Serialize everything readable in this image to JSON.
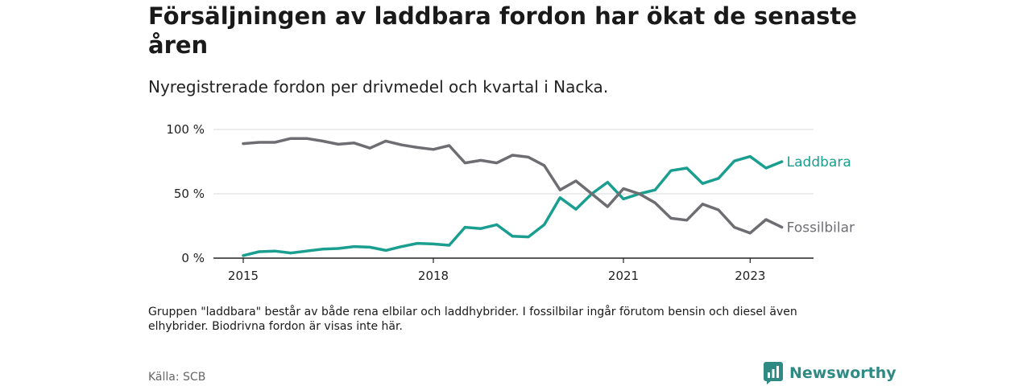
{
  "title": "Försäljningen av laddbara fordon har ökat de senaste åren",
  "subtitle": "Nyregistrerade fordon per drivmedel och kvartal i Nacka.",
  "footnote": "Gruppen \"laddbara\" består av både rena elbilar och laddhybrider. I fossilbilar ingår förutom bensin och diesel även elhybrider. Biodrivna fordon är visas inte här.",
  "source": "Källa: SCB",
  "brand": "Newsworthy",
  "colors": {
    "laddbara": "#1a9e8f",
    "fossil": "#6e6d72",
    "grid": "#d9d9d9",
    "axis": "#222222",
    "brand": "#2f8a84"
  },
  "chart_data": {
    "type": "line",
    "title": "Försäljningen av laddbara fordon har ökat de senaste åren",
    "subtitle": "Nyregistrerade fordon per drivmedel och kvartal i Nacka.",
    "xlabel": "",
    "ylabel": "",
    "x_unit": "year (quarterly)",
    "xlim": [
      2015,
      2024
    ],
    "ylim": [
      0,
      100
    ],
    "grid": true,
    "x_ticks": [
      {
        "value": 2015,
        "label": "2015"
      },
      {
        "value": 2018,
        "label": "2018"
      },
      {
        "value": 2021,
        "label": "2021"
      },
      {
        "value": 2023,
        "label": "2023"
      }
    ],
    "y_ticks": [
      {
        "value": 0,
        "label": "0 %"
      },
      {
        "value": 50,
        "label": "50 %"
      },
      {
        "value": 100,
        "label": "100 %"
      }
    ],
    "x": [
      2015.0,
      2015.25,
      2015.5,
      2015.75,
      2016.0,
      2016.25,
      2016.5,
      2016.75,
      2017.0,
      2017.25,
      2017.5,
      2017.75,
      2018.0,
      2018.25,
      2018.5,
      2018.75,
      2019.0,
      2019.25,
      2019.5,
      2019.75,
      2020.0,
      2020.25,
      2020.5,
      2020.75,
      2021.0,
      2021.25,
      2021.5,
      2021.75,
      2022.0,
      2022.25,
      2022.5,
      2022.75,
      2023.0,
      2023.25,
      2023.5
    ],
    "series": [
      {
        "name": "Laddbara",
        "color": "#1a9e8f",
        "values": [
          2,
          5,
          5.5,
          4,
          5.5,
          7,
          7.5,
          9,
          8.5,
          6,
          9,
          11.5,
          11,
          10,
          24,
          23,
          26,
          17,
          16.5,
          26,
          47,
          38,
          50,
          59,
          46,
          50,
          53,
          68,
          70,
          58,
          62,
          75.5,
          79,
          70,
          75
        ]
      },
      {
        "name": "Fossilbilar",
        "color": "#6e6d72",
        "values": [
          89,
          90,
          90,
          93,
          93,
          91,
          88.5,
          89.5,
          85.5,
          91,
          88,
          86,
          84.5,
          87.5,
          74,
          76,
          74,
          80,
          78.5,
          72,
          53,
          60,
          50,
          40,
          54,
          50,
          43,
          31,
          29.5,
          42,
          37.5,
          24,
          19.5,
          30,
          24
        ]
      }
    ]
  }
}
